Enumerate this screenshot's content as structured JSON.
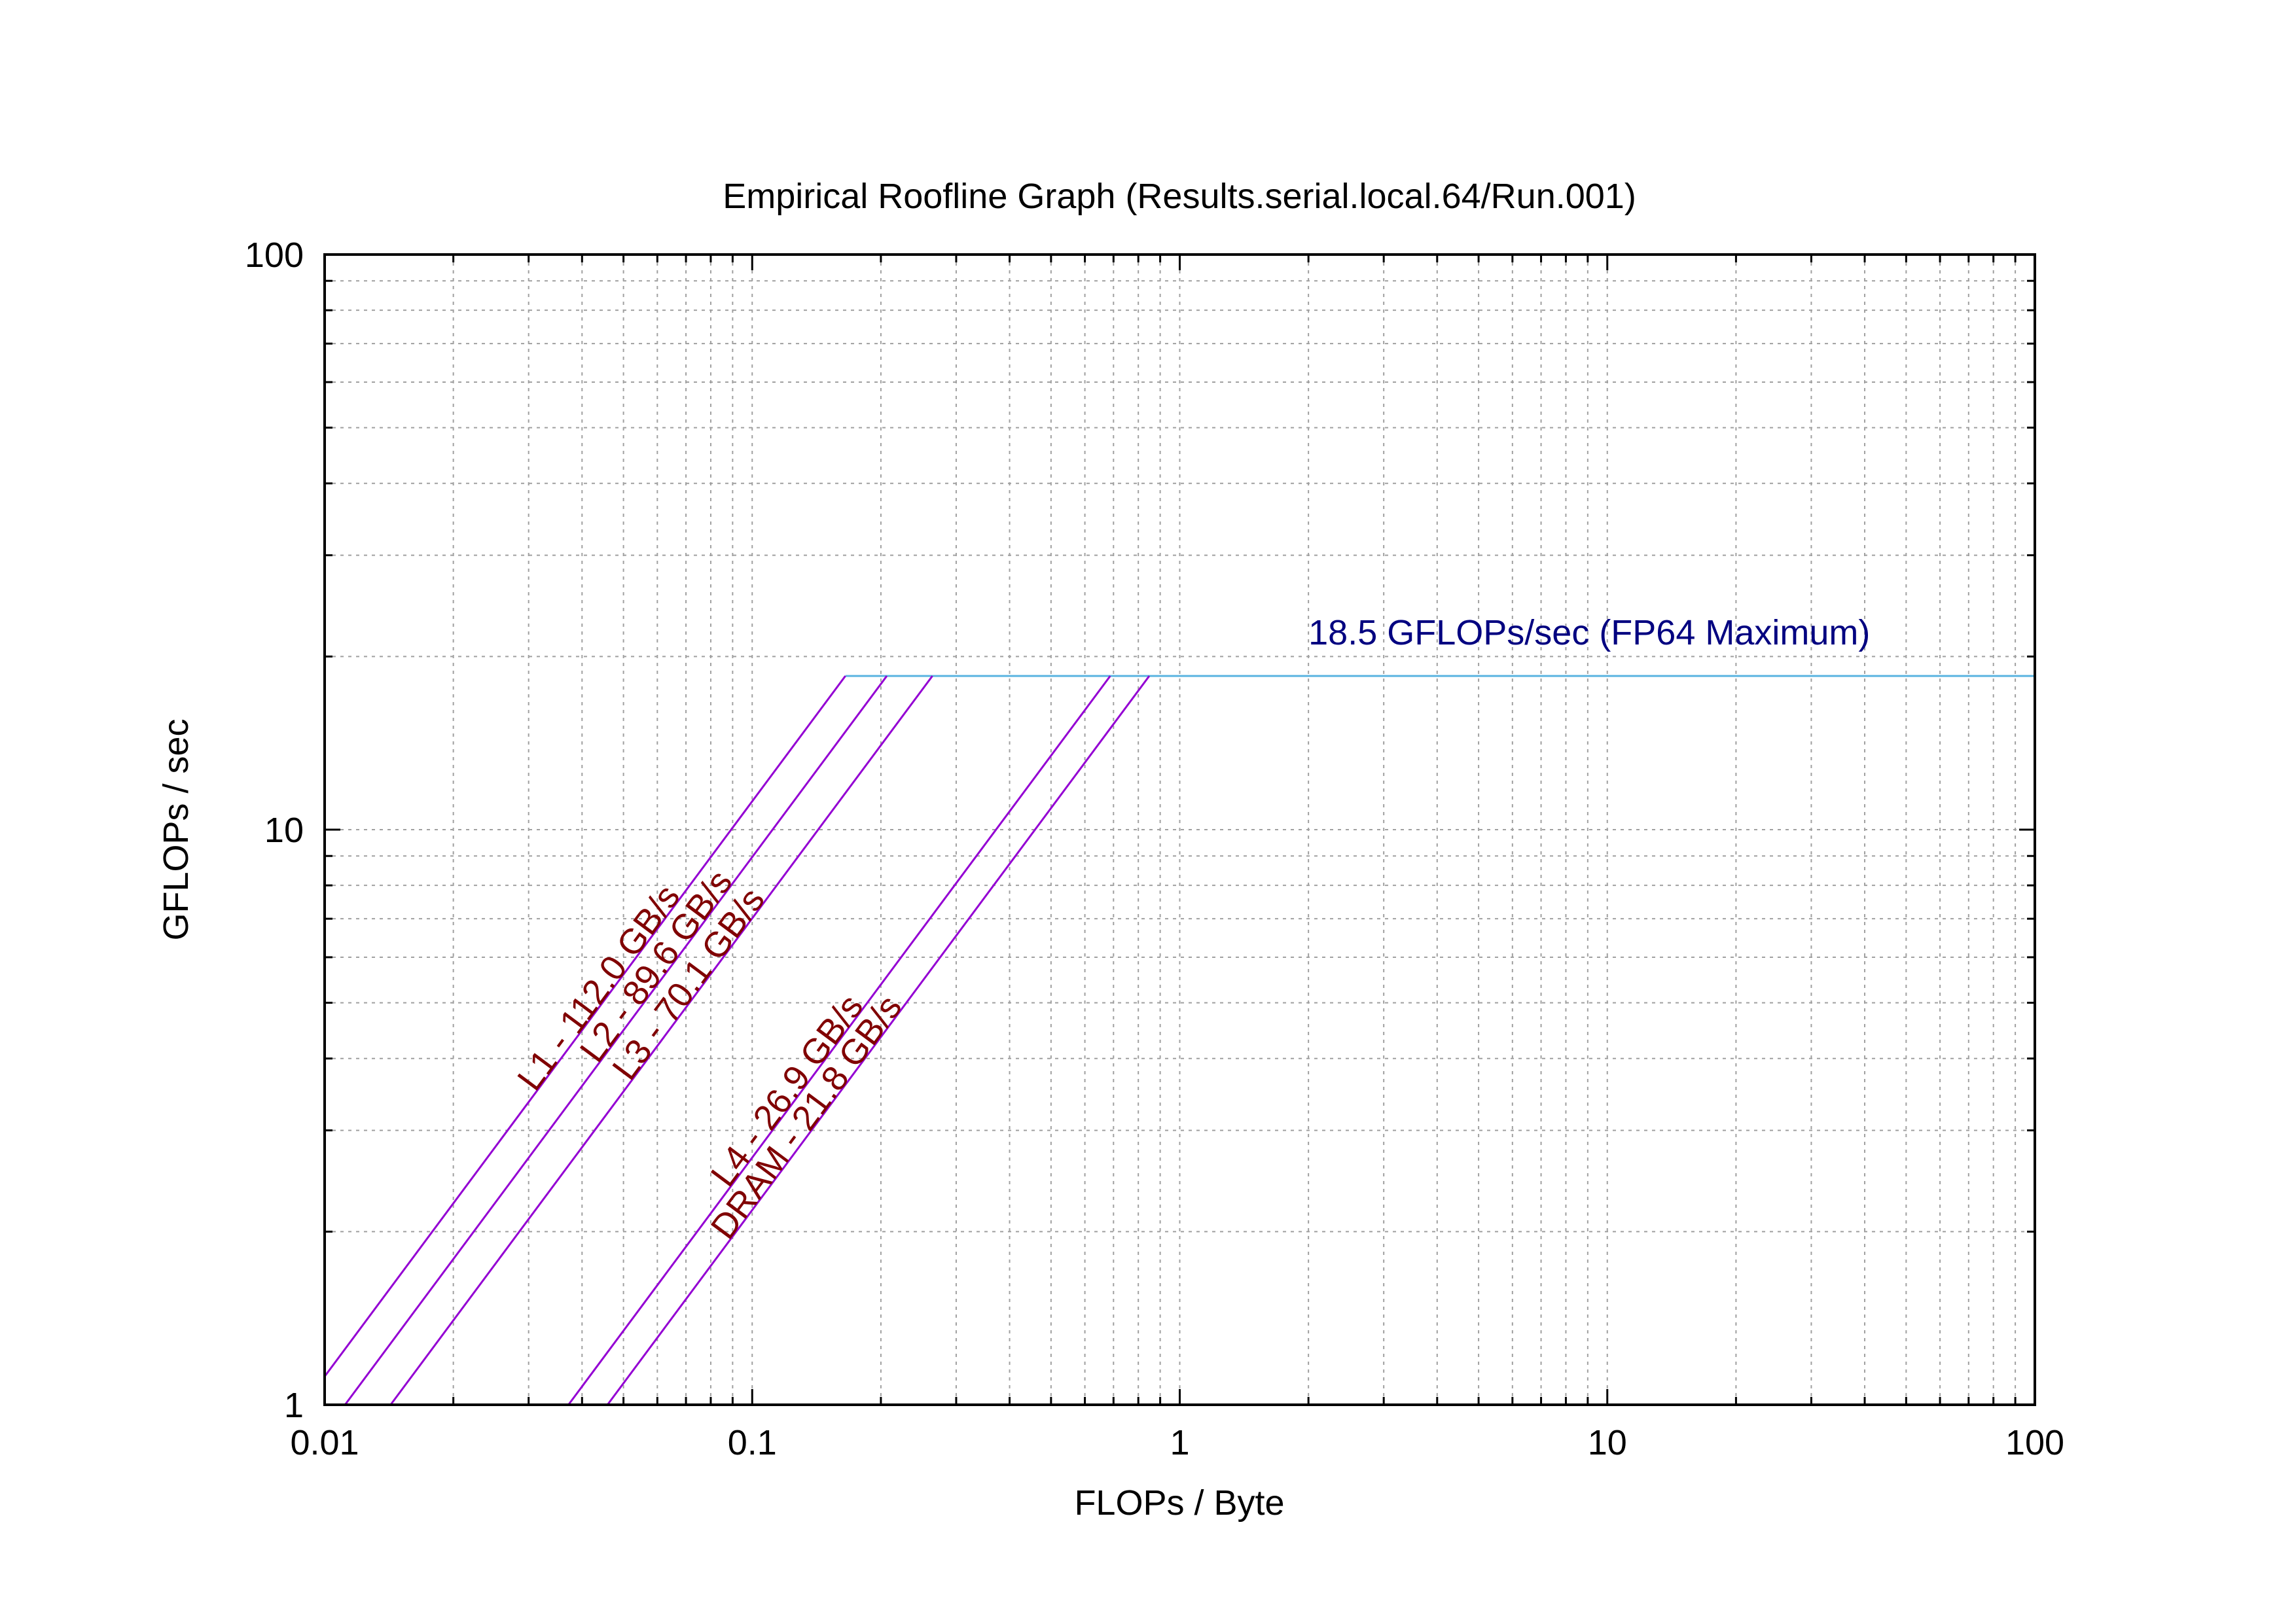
{
  "chart_data": {
    "type": "line",
    "title": "Empirical Roofline Graph (Results.serial.local.64/Run.001)",
    "xlabel": "FLOPs / Byte",
    "ylabel": "GFLOPs / sec",
    "x_scale": "log",
    "y_scale": "log",
    "xlim": [
      0.01,
      100
    ],
    "ylim": [
      1,
      100
    ],
    "x_ticks": [
      {
        "value": 0.01,
        "label": "0.01"
      },
      {
        "value": 0.1,
        "label": "0.1"
      },
      {
        "value": 1,
        "label": "1"
      },
      {
        "value": 10,
        "label": "10"
      },
      {
        "value": 100,
        "label": "100"
      }
    ],
    "y_ticks": [
      {
        "value": 1,
        "label": "1"
      },
      {
        "value": 10,
        "label": "10"
      },
      {
        "value": 100,
        "label": "100"
      }
    ],
    "grid": true,
    "legend": "none",
    "peak": {
      "label": "18.5 GFLOPs/sec (FP64 Maximum)",
      "gflops": 18.5,
      "color": "#000080",
      "line_color": "#5ab4e0",
      "label_at_x": 2.0
    },
    "bandwidths": [
      {
        "label": "L1 - 112.0 GB/s",
        "gbps": 112.0,
        "label_at_x": 0.03
      },
      {
        "label": "L2 - 89.6 GB/s",
        "gbps": 89.6,
        "label_at_x": 0.042
      },
      {
        "label": "L3 - 70.1 GB/s",
        "gbps": 70.1,
        "label_at_x": 0.05
      },
      {
        "label": "L4 - 26.9 GB/s",
        "gbps": 26.9,
        "label_at_x": 0.085
      },
      {
        "label": "DRAM - 21.8 GB/s",
        "gbps": 21.8,
        "label_at_x": 0.085
      }
    ],
    "bandwidth_line_color": "#9400d3",
    "bandwidth_label_color": "#800000"
  }
}
